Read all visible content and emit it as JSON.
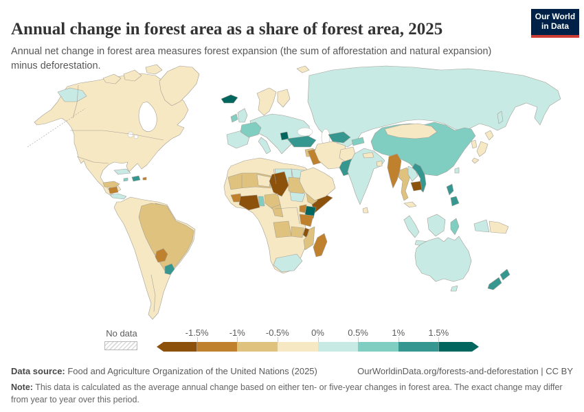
{
  "header": {
    "title": "Annual change in forest area as a share of forest area, 2025",
    "subtitle": "Annual net change in forest area measures forest expansion (the sum of afforestation and natural expansion) minus deforestation."
  },
  "logo": {
    "line1": "Our World",
    "line2": "in Data",
    "bg": "#002147",
    "accent": "#cd3d34"
  },
  "legend": {
    "no_data_label": "No data",
    "tick_labels": [
      "-1.5%",
      "-1%",
      "-0.5%",
      "0%",
      "0.5%",
      "1%",
      "1.5%"
    ],
    "bins": [
      {
        "range": "less than -1.5%",
        "color": "#8c510a"
      },
      {
        "range": "-1.5% to -1%",
        "color": "#bf812d"
      },
      {
        "range": "-1% to -0.5%",
        "color": "#dfc27d"
      },
      {
        "range": "-0.5% to 0%",
        "color": "#f6e8c3"
      },
      {
        "range": "0% to 0.5%",
        "color": "#c7eae5"
      },
      {
        "range": "0.5% to 1%",
        "color": "#80cdc1"
      },
      {
        "range": "1% to 1.5%",
        "color": "#35978f"
      },
      {
        "range": "more than 1.5%",
        "color": "#01665e"
      }
    ]
  },
  "footer": {
    "data_source_label": "Data source:",
    "data_source": " Food and Agriculture Organization of the United Nations (2025)",
    "link": "OurWorldinData.org/forests-and-deforestation | CC BY",
    "note_label": "Note:",
    "note": " This data is calculated as the average annual change based on either ten- or five-year changes in forest area. The exact change may differ from year to year over this period."
  },
  "map": {
    "ocean": "#ffffff",
    "border": "#a49e95",
    "region_colors": {
      "north-america": "#f6e8c3",
      "greenland": "#f6e8c3",
      "arctic-islands": "#f6e8c3",
      "svalbard": "#f6e8c3",
      "chukotka": "#c7eae5",
      "cuba": "#c7eae5",
      "hispaniola": "#35978f",
      "jamaica": "#80cdc1",
      "puerto-rico": "#bf812d",
      "guatemala-honduras": "#dfc27d",
      "nicaragua": "#bf812d",
      "costa-rica-panama": "#c7eae5",
      "south-america": "#f6e8c3",
      "brazil": "#dfc27d",
      "guianas": "#dfc27d",
      "paraguay": "#bf812d",
      "uruguay": "#35978f",
      "africa": "#f6e8c3",
      "sahel": "#dfc27d",
      "niger": "#f6e8c3",
      "libya": "#c7eae5",
      "egypt": "#c7eae5",
      "chad": "#8c510a",
      "sudan": "#dfc27d",
      "south-sudan": "#c7eae5",
      "ethiopia": "#dfc27d",
      "somalia": "#8c510a",
      "kenya": "#01665e",
      "uganda": "#bf812d",
      "tanzania": "#bf812d",
      "malawi": "#8c510a",
      "mozambique": "#dfc27d",
      "angola": "#dfc27d",
      "zambia": "#dfc27d",
      "south-africa": "#c7eae5",
      "madagascar": "#bf812d",
      "guinea": "#bf812d",
      "cote-divoire-ghana": "#8c510a",
      "benin-togo": "#80cdc1",
      "nigeria": "#dfc27d",
      "cameroon": "#dfc27d",
      "iceland": "#01665e",
      "uk": "#c7eae5",
      "ireland": "#80cdc1",
      "france": "#80cdc1",
      "iberia": "#c7eae5",
      "central-europe": "#c7eae5",
      "italy": "#c7eae5",
      "norway-sweden": "#f6e8c3",
      "finland": "#f6e8c3",
      "serbia": "#01665e",
      "turkey": "#35978f",
      "russia": "#c7eae5",
      "uzbekistan": "#35978f",
      "kyrgyzstan-tajikistan": "#80cdc1",
      "syria": "#dfc27d",
      "iraq": "#bf812d",
      "iran": "#f6e8c3",
      "saudi-arabia": "#f6e8c3",
      "afghanistan": "#f6e8c3",
      "pakistan": "#35978f",
      "india": "#c7eae5",
      "nepal": "#f6e8c3",
      "bangladesh": "#f6e8c3",
      "sri-lanka": "#f6e8c3",
      "china": "#80cdc1",
      "mongolia": "#f6e8c3",
      "myanmar": "#bf812d",
      "thailand": "#dfc27d",
      "laos": "#c7eae5",
      "cambodia": "#8c510a",
      "vietnam": "#35978f",
      "malaysia": "#f6e8c3",
      "japan": "#f6e8c3",
      "korea": "#f6e8c3",
      "sakhalin": "#c7eae5",
      "taiwan": "#c7eae5",
      "philippines": "#35978f",
      "sumatra": "#c7eae5",
      "java": "#c7eae5",
      "borneo": "#c7eae5",
      "sulawesi": "#80cdc1",
      "papua": "#c7eae5",
      "papua-new-guinea": "#f6e8c3",
      "australia": "#c7eae5",
      "tasmania": "#c7eae5",
      "new-zealand": "#35978f"
    }
  }
}
